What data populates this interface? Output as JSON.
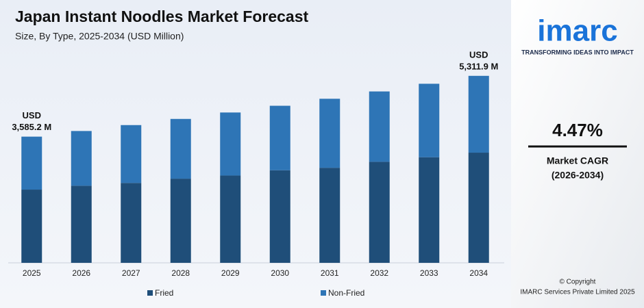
{
  "chart_data": {
    "type": "stacked_bar",
    "title": "Japan Instant Noodles Market Forecast",
    "subtitle": "Size, By Type, 2025-2034 (USD Million)",
    "categories": [
      "2025",
      "2026",
      "2027",
      "2028",
      "2029",
      "2030",
      "2031",
      "2032",
      "2033",
      "2034"
    ],
    "series": [
      {
        "name": "Fried",
        "color": "#1f4e79",
        "values": [
          2080,
          2190,
          2270,
          2390,
          2480,
          2630,
          2700,
          2870,
          3000,
          3130
        ]
      },
      {
        "name": "Non-Fried",
        "color": "#2e75b6",
        "values": [
          1505,
          1555,
          1643,
          1698,
          1791,
          1832,
          1961,
          1999,
          2087,
          2182
        ]
      }
    ],
    "annotations": [
      {
        "category": 0,
        "prefix": "USD",
        "label": "3,585.2 M",
        "value": 3585.2
      },
      {
        "category": 9,
        "prefix": "USD",
        "label": "5,311.9 M",
        "value": 5311.9
      }
    ],
    "ylim": [
      0,
      5600
    ]
  },
  "sidebar": {
    "logo": "imarc",
    "tagline": "TRANSFORMING IDEAS INTO IMPACT",
    "cagr": "4.47%",
    "cagr_label": "Market CAGR",
    "cagr_period": "(2026-2034)",
    "copyright": "© Copyright",
    "company": "IMARC Services Private Limited 2025"
  }
}
